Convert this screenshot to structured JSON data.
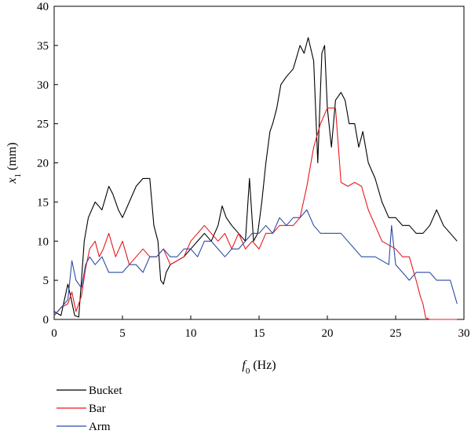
{
  "chart_data": {
    "type": "line",
    "title": "",
    "xlabel": {
      "symbol": "f",
      "sub": "0",
      "unit": " (Hz)"
    },
    "ylabel": {
      "symbol": "x",
      "sub": "1",
      "unit": " (mm)"
    },
    "xlim": [
      0,
      30
    ],
    "ylim": [
      0,
      40
    ],
    "xticks": [
      0,
      5,
      10,
      15,
      20,
      25,
      30
    ],
    "yticks": [
      0,
      5,
      10,
      15,
      20,
      25,
      30,
      35,
      40
    ],
    "grid": false,
    "legend_position": "bottom-left",
    "series": [
      {
        "name": "Bucket",
        "color": "#000000",
        "x": [
          0,
          0.5,
          1,
          1.2,
          1.5,
          1.8,
          2,
          2.2,
          2.5,
          3,
          3.5,
          4,
          4.3,
          4.7,
          5,
          5.5,
          6,
          6.5,
          7,
          7.3,
          7.6,
          7.8,
          8,
          8.2,
          8.5,
          9,
          9.5,
          10,
          10.5,
          11,
          11.5,
          12,
          12.3,
          12.6,
          13,
          13.5,
          14,
          14.3,
          14.6,
          14.9,
          15.2,
          15.5,
          15.8,
          16,
          16.3,
          16.6,
          17,
          17.5,
          18,
          18.3,
          18.6,
          19,
          19.3,
          19.6,
          19.8,
          20,
          20.3,
          20.6,
          21,
          21.3,
          21.6,
          22,
          22.3,
          22.6,
          23,
          23.5,
          24,
          24.5,
          25,
          25.5,
          26,
          26.5,
          27,
          27.5,
          28,
          28.5,
          29,
          29.5
        ],
        "y": [
          1,
          0.5,
          4.5,
          3,
          0.5,
          0.3,
          5,
          10,
          13,
          15,
          14,
          17,
          16,
          14,
          13,
          15,
          17,
          18,
          18,
          12,
          10,
          5,
          4.5,
          6,
          7,
          7.5,
          8,
          9,
          10,
          11,
          10,
          12,
          14.5,
          13,
          12,
          11,
          10,
          18,
          10,
          11,
          15,
          20,
          24,
          25,
          27,
          30,
          31,
          32,
          35,
          34,
          36,
          33,
          20,
          34,
          35,
          27,
          22,
          28,
          29,
          28,
          25,
          25,
          22,
          24,
          20,
          18,
          15,
          13,
          13,
          12,
          12,
          11,
          11,
          12,
          14,
          12,
          11,
          10
        ]
      },
      {
        "name": "Bar",
        "color": "#e8191c",
        "x": [
          0,
          0.5,
          1,
          1.3,
          1.6,
          2,
          2.3,
          2.6,
          3,
          3.3,
          3.6,
          4,
          4.5,
          5,
          5.5,
          6,
          6.5,
          7,
          7.5,
          8,
          8.5,
          9,
          9.5,
          10,
          10.5,
          11,
          11.5,
          12,
          12.5,
          13,
          13.5,
          14,
          14.5,
          15,
          15.5,
          16,
          16.5,
          17,
          17.5,
          18,
          18.5,
          19,
          19.5,
          20,
          20.3,
          20.6,
          21,
          21.5,
          22,
          22.5,
          23,
          23.5,
          24,
          24.5,
          25,
          25.5,
          26,
          26.5,
          26.8,
          27,
          27.2,
          27.5,
          28,
          28.5,
          29,
          29.5
        ],
        "y": [
          0.5,
          1.5,
          2,
          3.5,
          1,
          3,
          6.5,
          9,
          10,
          8,
          9,
          11,
          8,
          10,
          7,
          8,
          9,
          8,
          8,
          9,
          7,
          7.5,
          8,
          10,
          11,
          12,
          11,
          10,
          11,
          9,
          11,
          9,
          10,
          9,
          11,
          11,
          12,
          12,
          12,
          13,
          17,
          22,
          25,
          27,
          27,
          27,
          17.5,
          17,
          17.5,
          17,
          14,
          12,
          10,
          9.5,
          9,
          8,
          8,
          5,
          3,
          2,
          0.2,
          0,
          0,
          0,
          0,
          0
        ]
      },
      {
        "name": "Arm",
        "color": "#2b4ba6",
        "x": [
          0,
          0.5,
          1,
          1.3,
          1.6,
          2,
          2.3,
          2.6,
          3,
          3.5,
          4,
          4.5,
          5,
          5.5,
          6,
          6.5,
          7,
          7.5,
          8,
          8.5,
          9,
          9.5,
          10,
          10.5,
          11,
          11.5,
          12,
          12.5,
          13,
          13.5,
          14,
          14.5,
          15,
          15.5,
          16,
          16.5,
          17,
          17.5,
          18,
          18.5,
          19,
          19.5,
          20,
          20.5,
          21,
          21.5,
          22,
          22.5,
          23,
          23.5,
          24,
          24.5,
          24.7,
          25,
          25.5,
          26,
          26.5,
          27,
          27.5,
          28,
          28.5,
          29,
          29.5
        ],
        "y": [
          0.5,
          1.5,
          2.5,
          7.5,
          5,
          4,
          7,
          8,
          7,
          8,
          6,
          6,
          6,
          7,
          7,
          6,
          8,
          8,
          9,
          8,
          8,
          9,
          9,
          8,
          10,
          10,
          9,
          8,
          9,
          9,
          10,
          11,
          11,
          12,
          11,
          13,
          12,
          13,
          13,
          14,
          12,
          11,
          11,
          11,
          11,
          10,
          9,
          8,
          8,
          8,
          7.5,
          7,
          12,
          7,
          6,
          5,
          6,
          6,
          6,
          5,
          5,
          5,
          2
        ]
      }
    ]
  }
}
